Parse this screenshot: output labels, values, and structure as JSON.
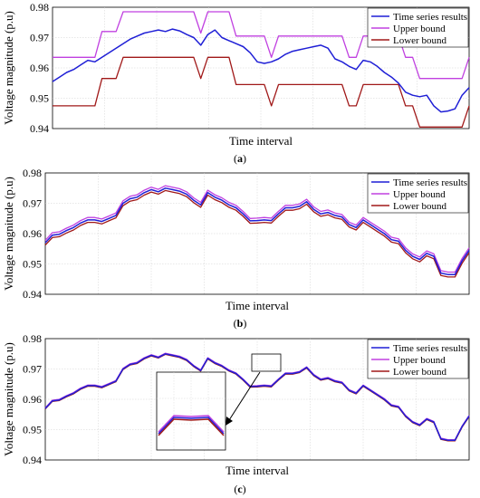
{
  "colors": {
    "series": "#1f1fd6",
    "upper": "#c040e0",
    "lower": "#a01818"
  },
  "chart_data": [
    {
      "type": "line",
      "caption_open": "(",
      "caption_letter": "a",
      "caption_close": ")",
      "xlabel": "Time interval",
      "ylabel": "Voltage magnitude (p.u)",
      "ylim": [
        0.94,
        0.98
      ],
      "yticks": [
        "0.94",
        "0.95",
        "0.96",
        "0.97",
        "0.98"
      ],
      "legend": [
        "Time series results",
        "Upper bound",
        "Lower bound"
      ],
      "legend_position": "top-right",
      "series": [
        {
          "name": "Time series results",
          "color_key": "series",
          "values": [
            0.9555,
            0.957,
            0.9585,
            0.9595,
            0.961,
            0.9625,
            0.962,
            0.9635,
            0.965,
            0.9665,
            0.968,
            0.9695,
            0.9705,
            0.9715,
            0.972,
            0.9725,
            0.972,
            0.9728,
            0.9722,
            0.971,
            0.97,
            0.9675,
            0.971,
            0.9725,
            0.97,
            0.969,
            0.968,
            0.967,
            0.965,
            0.962,
            0.9615,
            0.962,
            0.963,
            0.9645,
            0.9655,
            0.966,
            0.9665,
            0.967,
            0.9675,
            0.9665,
            0.963,
            0.962,
            0.9605,
            0.9595,
            0.9625,
            0.962,
            0.9605,
            0.9585,
            0.957,
            0.955,
            0.952,
            0.951,
            0.9505,
            0.951,
            0.9475,
            0.9455,
            0.9458,
            0.9465,
            0.951,
            0.9535
          ]
        },
        {
          "name": "Upper bound",
          "color_key": "upper",
          "values": [
            0.9635,
            0.9635,
            0.9635,
            0.9635,
            0.9635,
            0.9635,
            0.9635,
            0.972,
            0.972,
            0.972,
            0.9785,
            0.9785,
            0.9785,
            0.9785,
            0.9785,
            0.9785,
            0.9785,
            0.9785,
            0.9785,
            0.9785,
            0.9785,
            0.9715,
            0.9785,
            0.9785,
            0.9785,
            0.9785,
            0.9705,
            0.9705,
            0.9705,
            0.9705,
            0.9705,
            0.9635,
            0.9705,
            0.9705,
            0.9705,
            0.9705,
            0.9705,
            0.9705,
            0.9705,
            0.9705,
            0.9705,
            0.9705,
            0.9635,
            0.9635,
            0.9705,
            0.9705,
            0.9705,
            0.9705,
            0.9705,
            0.9705,
            0.9635,
            0.9635,
            0.9565,
            0.9565,
            0.9565,
            0.9565,
            0.9565,
            0.9565,
            0.9565,
            0.9635
          ]
        },
        {
          "name": "Lower bound",
          "color_key": "lower",
          "values": [
            0.9475,
            0.9475,
            0.9475,
            0.9475,
            0.9475,
            0.9475,
            0.9475,
            0.9565,
            0.9565,
            0.9565,
            0.9635,
            0.9635,
            0.9635,
            0.9635,
            0.9635,
            0.9635,
            0.9635,
            0.9635,
            0.9635,
            0.9635,
            0.9635,
            0.9565,
            0.9635,
            0.9635,
            0.9635,
            0.9635,
            0.9545,
            0.9545,
            0.9545,
            0.9545,
            0.9545,
            0.9475,
            0.9545,
            0.9545,
            0.9545,
            0.9545,
            0.9545,
            0.9545,
            0.9545,
            0.9545,
            0.9545,
            0.9545,
            0.9475,
            0.9475,
            0.9545,
            0.9545,
            0.9545,
            0.9545,
            0.9545,
            0.9545,
            0.9475,
            0.9475,
            0.9405,
            0.9405,
            0.9405,
            0.9405,
            0.9405,
            0.9405,
            0.9405,
            0.9475
          ]
        }
      ]
    },
    {
      "type": "line",
      "caption_open": "(",
      "caption_letter": "b",
      "caption_close": ")",
      "xlabel": "Time interval",
      "ylabel": "Voltage magnitude (p.u)",
      "ylim": [
        0.94,
        0.98
      ],
      "yticks": [
        "0.94",
        "0.95",
        "0.96",
        "0.97",
        "0.98"
      ],
      "legend": [
        "Time series results",
        "Upper bound",
        "Lower bound"
      ],
      "legend_position": "top-right",
      "series": [
        {
          "name": "Time series results",
          "color_key": "series",
          "values": [
            0.957,
            0.9595,
            0.9598,
            0.961,
            0.962,
            0.9635,
            0.9645,
            0.9645,
            0.964,
            0.965,
            0.966,
            0.97,
            0.9715,
            0.972,
            0.9735,
            0.9745,
            0.9738,
            0.975,
            0.9745,
            0.974,
            0.973,
            0.971,
            0.9695,
            0.9735,
            0.972,
            0.971,
            0.9695,
            0.9685,
            0.9665,
            0.9642,
            0.9643,
            0.9645,
            0.9643,
            0.9665,
            0.9685,
            0.9685,
            0.969,
            0.9705,
            0.968,
            0.9665,
            0.967,
            0.966,
            0.9655,
            0.963,
            0.962,
            0.9645,
            0.963,
            0.9615,
            0.96,
            0.958,
            0.9575,
            0.9545,
            0.9525,
            0.9515,
            0.9535,
            0.9525,
            0.947,
            0.9465,
            0.9465,
            0.951,
            0.9545
          ]
        },
        {
          "name": "Upper bound",
          "color_key": "upper",
          "values": [
            0.9578,
            0.9603,
            0.9606,
            0.9618,
            0.9628,
            0.9643,
            0.9653,
            0.9653,
            0.9648,
            0.9658,
            0.9668,
            0.9708,
            0.9723,
            0.9728,
            0.9743,
            0.9753,
            0.9746,
            0.9758,
            0.9753,
            0.9748,
            0.9738,
            0.9718,
            0.9703,
            0.9743,
            0.9728,
            0.9718,
            0.9703,
            0.9693,
            0.9673,
            0.965,
            0.9651,
            0.9653,
            0.9651,
            0.9673,
            0.9693,
            0.9693,
            0.9698,
            0.9713,
            0.9688,
            0.9673,
            0.9678,
            0.9668,
            0.9663,
            0.9638,
            0.9628,
            0.9653,
            0.9638,
            0.9623,
            0.9608,
            0.9588,
            0.9583,
            0.9553,
            0.9533,
            0.9523,
            0.9543,
            0.9533,
            0.9478,
            0.9473,
            0.9473,
            0.9518,
            0.9553
          ]
        },
        {
          "name": "Lower bound",
          "color_key": "lower",
          "values": [
            0.9562,
            0.9587,
            0.959,
            0.9602,
            0.9612,
            0.9627,
            0.9637,
            0.9637,
            0.9632,
            0.9642,
            0.9652,
            0.9692,
            0.9707,
            0.9712,
            0.9727,
            0.9737,
            0.973,
            0.9742,
            0.9737,
            0.9732,
            0.9722,
            0.9702,
            0.9687,
            0.9727,
            0.9712,
            0.9702,
            0.9687,
            0.9677,
            0.9657,
            0.9634,
            0.9635,
            0.9637,
            0.9635,
            0.9657,
            0.9677,
            0.9677,
            0.9682,
            0.9697,
            0.9672,
            0.9657,
            0.9662,
            0.9652,
            0.9647,
            0.9622,
            0.9612,
            0.9637,
            0.9622,
            0.9607,
            0.9592,
            0.9572,
            0.9567,
            0.9537,
            0.9517,
            0.9507,
            0.9527,
            0.9517,
            0.9462,
            0.9457,
            0.9457,
            0.9502,
            0.9537
          ]
        }
      ]
    },
    {
      "type": "line",
      "caption_open": "(",
      "caption_letter": "c",
      "caption_close": ")",
      "xlabel": "Time interval",
      "ylabel": "Voltage magnitude (p.u)",
      "ylim": [
        0.94,
        0.98
      ],
      "yticks": [
        "0.94",
        "0.95",
        "0.96",
        "0.97",
        "0.98"
      ],
      "legend": [
        "Time series results",
        "Upper bound",
        "Lower bound"
      ],
      "legend_position": "top-right",
      "inset": "zoom of intervals 30-34 showing three nearly overlapping lines",
      "series": [
        {
          "name": "Time series results",
          "color_key": "series",
          "values": [
            0.957,
            0.9595,
            0.9598,
            0.961,
            0.962,
            0.9635,
            0.9645,
            0.9645,
            0.964,
            0.965,
            0.966,
            0.97,
            0.9715,
            0.972,
            0.9735,
            0.9745,
            0.9738,
            0.975,
            0.9745,
            0.974,
            0.973,
            0.971,
            0.9695,
            0.9735,
            0.972,
            0.971,
            0.9695,
            0.9685,
            0.9665,
            0.9642,
            0.9643,
            0.9645,
            0.9643,
            0.9665,
            0.9685,
            0.9685,
            0.969,
            0.9705,
            0.968,
            0.9665,
            0.967,
            0.966,
            0.9655,
            0.963,
            0.962,
            0.9645,
            0.963,
            0.9615,
            0.96,
            0.958,
            0.9575,
            0.9545,
            0.9525,
            0.9515,
            0.9535,
            0.9525,
            0.947,
            0.9465,
            0.9465,
            0.951,
            0.9545
          ]
        },
        {
          "name": "Upper bound",
          "color_key": "upper",
          "values": [
            0.9572,
            0.9597,
            0.96,
            0.9612,
            0.9622,
            0.9637,
            0.9647,
            0.9647,
            0.9642,
            0.9652,
            0.9662,
            0.9702,
            0.9717,
            0.9722,
            0.9737,
            0.9747,
            0.974,
            0.9752,
            0.9747,
            0.9742,
            0.9732,
            0.9712,
            0.9697,
            0.9737,
            0.9722,
            0.9712,
            0.9697,
            0.9687,
            0.9667,
            0.9644,
            0.9645,
            0.9647,
            0.9645,
            0.9667,
            0.9687,
            0.9687,
            0.9692,
            0.9707,
            0.9682,
            0.9667,
            0.9672,
            0.9662,
            0.9657,
            0.9632,
            0.9622,
            0.9647,
            0.9632,
            0.9617,
            0.9602,
            0.9582,
            0.9577,
            0.9547,
            0.9527,
            0.9517,
            0.9537,
            0.9527,
            0.9472,
            0.9467,
            0.9467,
            0.9512,
            0.9547
          ]
        },
        {
          "name": "Lower bound",
          "color_key": "lower",
          "values": [
            0.9568,
            0.9593,
            0.9596,
            0.9608,
            0.9618,
            0.9633,
            0.9643,
            0.9643,
            0.9638,
            0.9648,
            0.9658,
            0.9698,
            0.9713,
            0.9718,
            0.9733,
            0.9743,
            0.9736,
            0.9748,
            0.9743,
            0.9738,
            0.9728,
            0.9708,
            0.9693,
            0.9733,
            0.9718,
            0.9708,
            0.9693,
            0.9683,
            0.9663,
            0.964,
            0.9641,
            0.9643,
            0.9641,
            0.9663,
            0.9683,
            0.9683,
            0.9688,
            0.9703,
            0.9678,
            0.9663,
            0.9668,
            0.9658,
            0.9653,
            0.9628,
            0.9618,
            0.9643,
            0.9628,
            0.9613,
            0.9598,
            0.9578,
            0.9573,
            0.9543,
            0.9523,
            0.9513,
            0.9533,
            0.9523,
            0.9468,
            0.9463,
            0.9463,
            0.9508,
            0.9543
          ]
        }
      ]
    }
  ]
}
